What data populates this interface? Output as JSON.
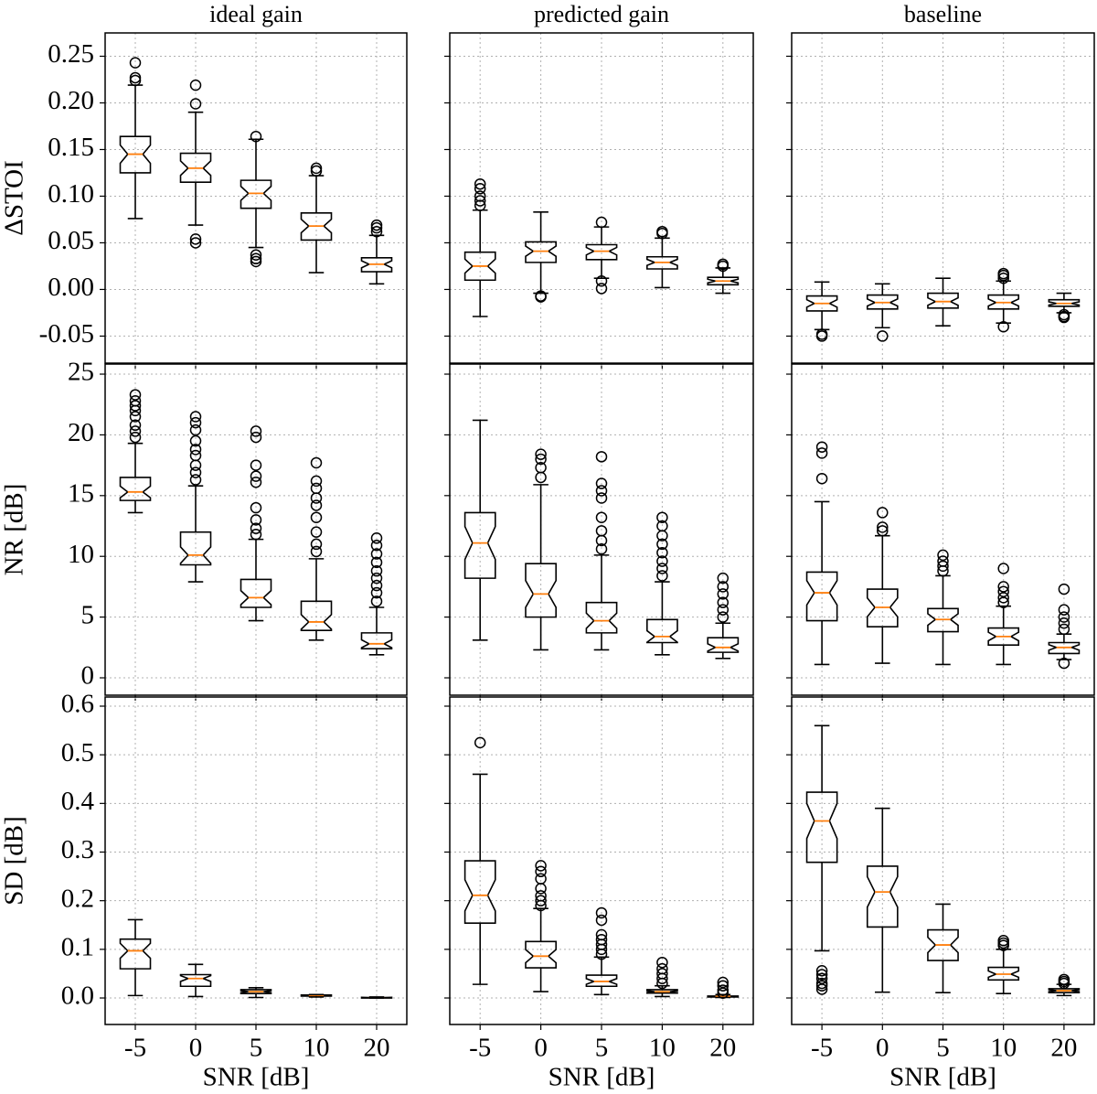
{
  "chart_data": {
    "type": "box",
    "median_color": "#ff7f0e",
    "box_color": "#000000",
    "grid": true,
    "notch": true,
    "categories": [
      "-5",
      "0",
      "5",
      "10",
      "20"
    ],
    "xlabel": "SNR [dB]",
    "columns": [
      {
        "title": "ideal gain"
      },
      {
        "title": "predicted gain"
      },
      {
        "title": "baseline"
      }
    ],
    "rows": [
      {
        "ylabel": "ΔSTOI",
        "ylim": [
          -0.079,
          0.275
        ],
        "yticks": [
          -0.05,
          {
            "value": 0,
            "label": "0.00"
          },
          0.05,
          {
            "value": 0.1,
            "label": "0.10"
          },
          0.15,
          {
            "value": 0.2,
            "label": "0.20"
          },
          0.25
        ],
        "panels": [
          {
            "boxes": [
              {
                "whislo": 0.076,
                "q1": 0.125,
                "med": 0.145,
                "q3": 0.164,
                "whishi": 0.219,
                "fliers": [
                  0.224,
                  0.227,
                  0.243
                ]
              },
              {
                "whislo": 0.069,
                "q1": 0.115,
                "med": 0.13,
                "q3": 0.146,
                "whishi": 0.19,
                "fliers": [
                  0.05,
                  0.054,
                  0.199,
                  0.219
                ]
              },
              {
                "whislo": 0.045,
                "q1": 0.087,
                "med": 0.103,
                "q3": 0.117,
                "whishi": 0.161,
                "fliers": [
                  0.03,
                  0.033,
                  0.037,
                  0.164
                ]
              },
              {
                "whislo": 0.018,
                "q1": 0.053,
                "med": 0.068,
                "q3": 0.082,
                "whishi": 0.122,
                "fliers": [
                  0.127,
                  0.13
                ]
              },
              {
                "whislo": 0.006,
                "q1": 0.019,
                "med": 0.027,
                "q3": 0.034,
                "whishi": 0.058,
                "fliers": [
                  0.062,
                  0.066,
                  0.069
                ]
              }
            ]
          },
          {
            "boxes": [
              {
                "whislo": -0.029,
                "q1": 0.01,
                "med": 0.025,
                "q3": 0.04,
                "whishi": 0.085,
                "fliers": [
                  0.09,
                  0.095,
                  0.1,
                  0.108,
                  0.113
                ]
              },
              {
                "whislo": -0.004,
                "q1": 0.029,
                "med": 0.041,
                "q3": 0.051,
                "whishi": 0.083,
                "fliers": [
                  -0.007,
                  -0.008
                ]
              },
              {
                "whislo": 0.012,
                "q1": 0.032,
                "med": 0.041,
                "q3": 0.048,
                "whishi": 0.067,
                "fliers": [
                  0.001,
                  0.009,
                  0.072
                ]
              },
              {
                "whislo": 0.002,
                "q1": 0.022,
                "med": 0.029,
                "q3": 0.035,
                "whishi": 0.055,
                "fliers": [
                  0.06,
                  0.062
                ]
              },
              {
                "whislo": -0.004,
                "q1": 0.005,
                "med": 0.009,
                "q3": 0.013,
                "whishi": 0.023,
                "fliers": [
                  0.025,
                  0.027
                ]
              }
            ]
          },
          {
            "boxes": [
              {
                "whislo": -0.043,
                "q1": -0.023,
                "med": -0.015,
                "q3": -0.007,
                "whishi": 0.008,
                "fliers": [
                  -0.048,
                  -0.05
                ]
              },
              {
                "whislo": -0.041,
                "q1": -0.021,
                "med": -0.014,
                "q3": -0.006,
                "whishi": 0.006,
                "fliers": [
                  -0.05
                ]
              },
              {
                "whislo": -0.039,
                "q1": -0.02,
                "med": -0.013,
                "q3": -0.004,
                "whishi": 0.012,
                "fliers": []
              },
              {
                "whislo": -0.036,
                "q1": -0.021,
                "med": -0.014,
                "q3": -0.006,
                "whishi": 0.009,
                "fliers": [
                  -0.04,
                  0.012,
                  0.015,
                  0.017
                ]
              },
              {
                "whislo": -0.025,
                "q1": -0.018,
                "med": -0.015,
                "q3": -0.011,
                "whishi": -0.004,
                "fliers": [
                  -0.027,
                  -0.029,
                  -0.03
                ]
              }
            ]
          }
        ]
      },
      {
        "ylabel": "NR [dB]",
        "ylim": [
          -1.43,
          25.83
        ],
        "yticks": [
          0,
          5,
          10,
          15,
          20,
          25
        ],
        "panels": [
          {
            "boxes": [
              {
                "whislo": 13.6,
                "q1": 14.6,
                "med": 15.3,
                "q3": 16.5,
                "whishi": 19.3,
                "fliers": [
                  19.8,
                  20.3,
                  20.8,
                  21.5,
                  22,
                  22.4,
                  22.8,
                  23.3
                ]
              },
              {
                "whislo": 7.9,
                "q1": 9.3,
                "med": 10.1,
                "q3": 12,
                "whishi": 15.8,
                "fliers": [
                  16.3,
                  16.9,
                  17.5,
                  18.3,
                  18.8,
                  19.5,
                  20.4,
                  21,
                  21.5
                ]
              },
              {
                "whislo": 4.7,
                "q1": 5.8,
                "med": 6.6,
                "q3": 8.1,
                "whishi": 11.4,
                "fliers": [
                  11.8,
                  12.3,
                  13,
                  14,
                  16.1,
                  16.6,
                  17.5,
                  19.8,
                  20.3
                ]
              },
              {
                "whislo": 3.1,
                "q1": 3.9,
                "med": 4.6,
                "q3": 6.3,
                "whishi": 9.8,
                "fliers": [
                  10.4,
                  11,
                  12,
                  13.2,
                  14.2,
                  14.8,
                  15.6,
                  16.2,
                  17.7
                ]
              },
              {
                "whislo": 1.9,
                "q1": 2.4,
                "med": 2.8,
                "q3": 3.7,
                "whishi": 5.8,
                "fliers": [
                  6.3,
                  7,
                  7.6,
                  8.2,
                  8.8,
                  9.5,
                  10.2,
                  10.9,
                  11.5
                ]
              }
            ]
          },
          {
            "boxes": [
              {
                "whislo": 3.1,
                "q1": 8.2,
                "med": 11.1,
                "q3": 13.6,
                "whishi": 21.2,
                "fliers": []
              },
              {
                "whislo": 2.3,
                "q1": 5,
                "med": 6.9,
                "q3": 9.4,
                "whishi": 15.9,
                "fliers": [
                  16.5,
                  17.3,
                  18,
                  18.4
                ]
              },
              {
                "whislo": 2.3,
                "q1": 3.7,
                "med": 4.7,
                "q3": 6.2,
                "whishi": 10.1,
                "fliers": [
                  10.6,
                  11.3,
                  12.1,
                  13.2,
                  14.8,
                  15.4,
                  16,
                  18.2
                ]
              },
              {
                "whislo": 1.9,
                "q1": 2.9,
                "med": 3.4,
                "q3": 4.8,
                "whishi": 7.9,
                "fliers": [
                  8.4,
                  9,
                  9.6,
                  10.3,
                  11,
                  11.7,
                  12.5,
                  13.2
                ]
              },
              {
                "whislo": 1.6,
                "q1": 2.1,
                "med": 2.5,
                "q3": 3.3,
                "whishi": 4.5,
                "fliers": [
                  5,
                  5.6,
                  6.2,
                  6.9,
                  7.5,
                  8.2
                ]
              }
            ]
          },
          {
            "boxes": [
              {
                "whislo": 1.1,
                "q1": 4.7,
                "med": 7,
                "q3": 8.7,
                "whishi": 14.5,
                "fliers": [
                  16.4,
                  18.5,
                  19
                ]
              },
              {
                "whislo": 1.2,
                "q1": 4.2,
                "med": 5.8,
                "q3": 7.3,
                "whishi": 11.7,
                "fliers": [
                  12.1,
                  12.4,
                  13.6
                ]
              },
              {
                "whislo": 1.1,
                "q1": 3.8,
                "med": 4.8,
                "q3": 5.7,
                "whishi": 8.4,
                "fliers": [
                  8.8,
                  9.2,
                  9.6,
                  10.1
                ]
              },
              {
                "whislo": 1.1,
                "q1": 2.7,
                "med": 3.4,
                "q3": 4.1,
                "whishi": 5.9,
                "fliers": [
                  6.2,
                  6.6,
                  7.1,
                  7.5,
                  9
                ]
              },
              {
                "whislo": 1.5,
                "q1": 2,
                "med": 2.5,
                "q3": 2.9,
                "whishi": 3.6,
                "fliers": [
                  1.2,
                  4,
                  4.5,
                  5,
                  5.6,
                  7.3
                ]
              }
            ]
          }
        ]
      },
      {
        "ylabel": "SD [dB]",
        "ylim": [
          -0.0545,
          0.6188
        ],
        "yticks": [
          {
            "value": 0,
            "label": "0.0"
          },
          0.1,
          0.2,
          0.3,
          0.4,
          0.5,
          0.6
        ],
        "panels": [
          {
            "boxes": [
              {
                "whislo": 0.005,
                "q1": 0.06,
                "med": 0.097,
                "q3": 0.121,
                "whishi": 0.161,
                "fliers": []
              },
              {
                "whislo": 0.003,
                "q1": 0.024,
                "med": 0.04,
                "q3": 0.048,
                "whishi": 0.069,
                "fliers": []
              },
              {
                "whislo": 0.001,
                "q1": 0.009,
                "med": 0.013,
                "q3": 0.017,
                "whishi": 0.021,
                "fliers": []
              },
              {
                "whislo": 0.002,
                "q1": 0.004,
                "med": 0.005,
                "q3": 0.006,
                "whishi": 0.007,
                "fliers": []
              },
              {
                "whislo": 0,
                "q1": 0,
                "med": 0.001,
                "q3": 0.001,
                "whishi": 0.002,
                "fliers": []
              }
            ]
          },
          {
            "boxes": [
              {
                "whislo": 0.028,
                "q1": 0.154,
                "med": 0.211,
                "q3": 0.282,
                "whishi": 0.46,
                "fliers": [
                  0.525
                ]
              },
              {
                "whislo": 0.013,
                "q1": 0.062,
                "med": 0.086,
                "q3": 0.116,
                "whishi": 0.184,
                "fliers": [
                  0.19,
                  0.2,
                  0.21,
                  0.225,
                  0.245,
                  0.26,
                  0.272
                ]
              },
              {
                "whislo": 0.007,
                "q1": 0.024,
                "med": 0.034,
                "q3": 0.047,
                "whishi": 0.084,
                "fliers": [
                  0.09,
                  0.1,
                  0.11,
                  0.12,
                  0.13,
                  0.16,
                  0.175
                ]
              },
              {
                "whislo": 0.003,
                "q1": 0.01,
                "med": 0.013,
                "q3": 0.017,
                "whishi": 0.025,
                "fliers": [
                  0.03,
                  0.04,
                  0.05,
                  0.06,
                  0.073
                ]
              },
              {
                "whislo": 0.001,
                "q1": 0.002,
                "med": 0.003,
                "q3": 0.004,
                "whishi": 0.007,
                "fliers": [
                  0.01,
                  0.016,
                  0.025,
                  0.032
                ]
              }
            ]
          },
          {
            "boxes": [
              {
                "whislo": 0.097,
                "q1": 0.279,
                "med": 0.364,
                "q3": 0.423,
                "whishi": 0.56,
                "fliers": [
                  0.018,
                  0.025,
                  0.03,
                  0.04,
                  0.048,
                  0.056
                ]
              },
              {
                "whislo": 0.012,
                "q1": 0.146,
                "med": 0.218,
                "q3": 0.271,
                "whishi": 0.39,
                "fliers": []
              },
              {
                "whislo": 0.011,
                "q1": 0.077,
                "med": 0.109,
                "q3": 0.14,
                "whishi": 0.193,
                "fliers": []
              },
              {
                "whislo": 0.009,
                "q1": 0.037,
                "med": 0.049,
                "q3": 0.063,
                "whishi": 0.1,
                "fliers": [
                  0.108,
                  0.113,
                  0.118
                ]
              },
              {
                "whislo": 0.005,
                "q1": 0.011,
                "med": 0.015,
                "q3": 0.019,
                "whishi": 0.028,
                "fliers": [
                  0.03,
                  0.034,
                  0.038
                ]
              }
            ]
          }
        ]
      }
    ]
  }
}
